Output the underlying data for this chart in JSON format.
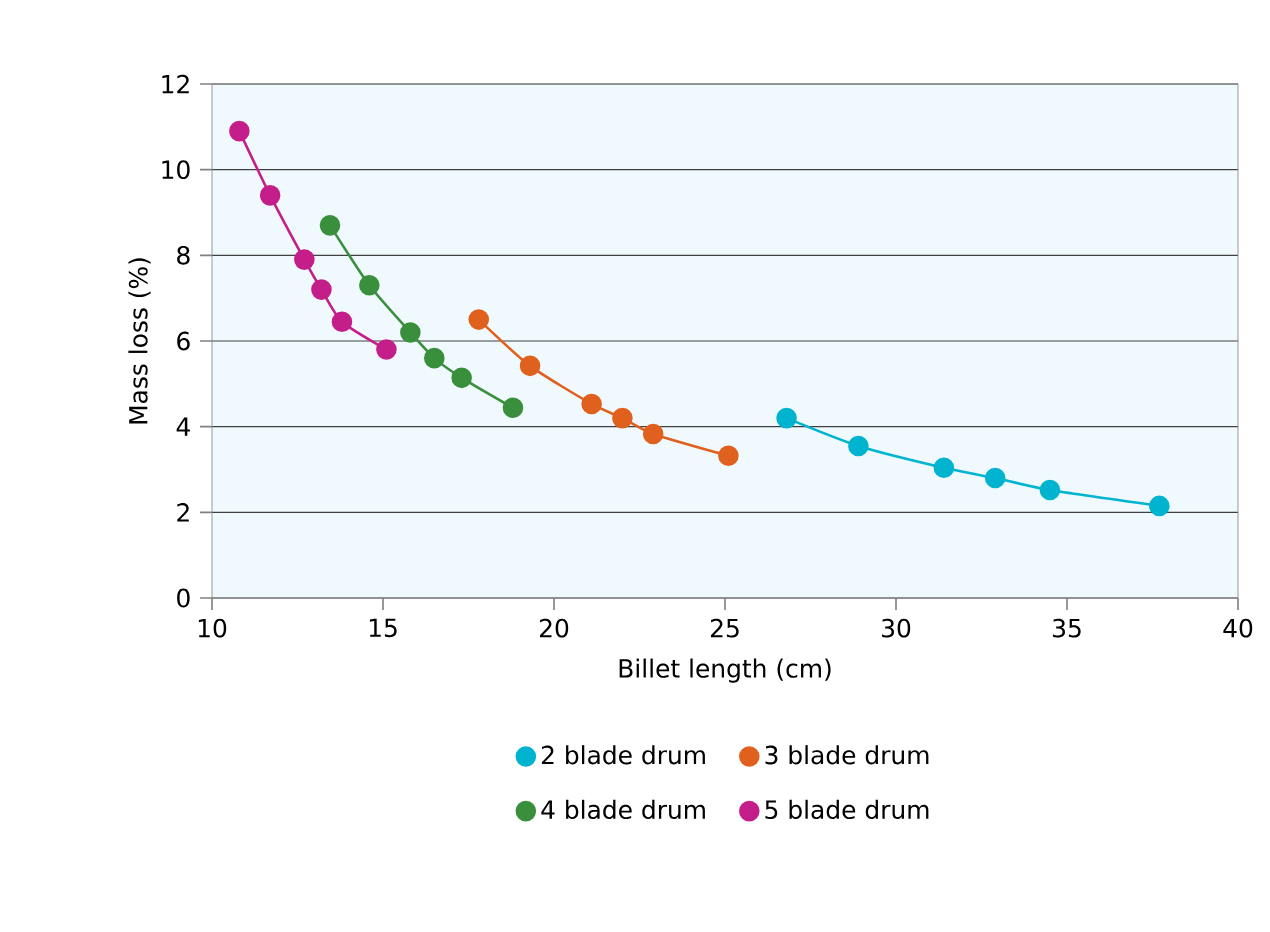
{
  "chart_data": {
    "type": "line",
    "xlabel": "Billet length (cm)",
    "ylabel": "Mass loss (%)",
    "xlim": [
      10,
      40
    ],
    "xticks": [
      10,
      15,
      20,
      25,
      30,
      35,
      40
    ],
    "ylim": [
      0,
      12
    ],
    "yticks": [
      0,
      2,
      4,
      6,
      8,
      10,
      12
    ],
    "grid": "y",
    "legend": "bottom",
    "marker": "circle",
    "line_style": "solid",
    "series": [
      {
        "name": "2 blade drum",
        "color": "#00b4d0",
        "x": [
          26.8,
          28.9,
          31.4,
          32.9,
          34.5,
          37.7
        ],
        "values": [
          4.2,
          3.55,
          3.04,
          2.8,
          2.52,
          2.15
        ]
      },
      {
        "name": "3 blade drum",
        "color": "#e0601e",
        "x": [
          17.8,
          19.3,
          21.1,
          22.0,
          22.9,
          25.1
        ],
        "values": [
          6.5,
          5.42,
          4.53,
          4.2,
          3.83,
          3.32
        ]
      },
      {
        "name": "4 blade drum",
        "color": "#3a8f3c",
        "x": [
          13.45,
          14.6,
          15.8,
          16.5,
          17.3,
          18.8
        ],
        "values": [
          8.7,
          7.3,
          6.2,
          5.6,
          5.14,
          4.44
        ]
      },
      {
        "name": "5 blade drum",
        "color": "#c41e8a",
        "x": [
          10.8,
          11.7,
          12.7,
          13.2,
          13.8,
          15.1
        ],
        "values": [
          10.9,
          9.4,
          7.9,
          7.2,
          6.45,
          5.8
        ]
      }
    ]
  }
}
